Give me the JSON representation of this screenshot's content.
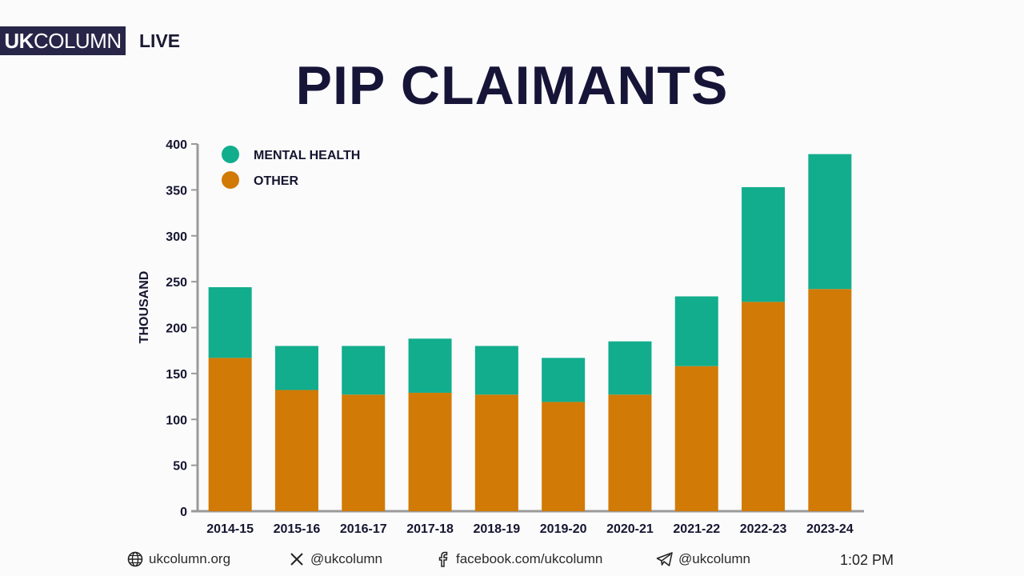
{
  "brand": {
    "name_bold": "UK",
    "name_rest": "COLUMN",
    "live": "LIVE"
  },
  "chart_data": {
    "type": "bar",
    "stacked": true,
    "title": "PIP CLAIMANTS",
    "xlabel": "",
    "ylabel": "THOUSAND",
    "ylim": [
      0,
      400
    ],
    "yticks": [
      0,
      50,
      100,
      150,
      200,
      250,
      300,
      350,
      400
    ],
    "grid": false,
    "legend_position": "top-left",
    "categories": [
      "2014-15",
      "2015-16",
      "2016-17",
      "2017-18",
      "2018-19",
      "2019-20",
      "2020-21",
      "2021-22",
      "2022-23",
      "2023-24"
    ],
    "series": [
      {
        "name": "OTHER",
        "color": "#d17a06",
        "values": [
          167,
          132,
          127,
          129,
          127,
          119,
          127,
          158,
          228,
          242
        ]
      },
      {
        "name": "MENTAL HEALTH",
        "color": "#12ad8d",
        "values": [
          77,
          48,
          53,
          59,
          53,
          48,
          58,
          76,
          125,
          147
        ]
      }
    ],
    "legend_order": [
      "MENTAL HEALTH",
      "OTHER"
    ]
  },
  "footer": {
    "website": "ukcolumn.org",
    "x_handle": "@ukcolumn",
    "facebook": "facebook.com/ukcolumn",
    "telegram": "@ukcolumn",
    "time": "1:02 PM",
    "icons": [
      "globe-icon",
      "x-logo-icon",
      "facebook-icon",
      "telegram-icon"
    ]
  }
}
